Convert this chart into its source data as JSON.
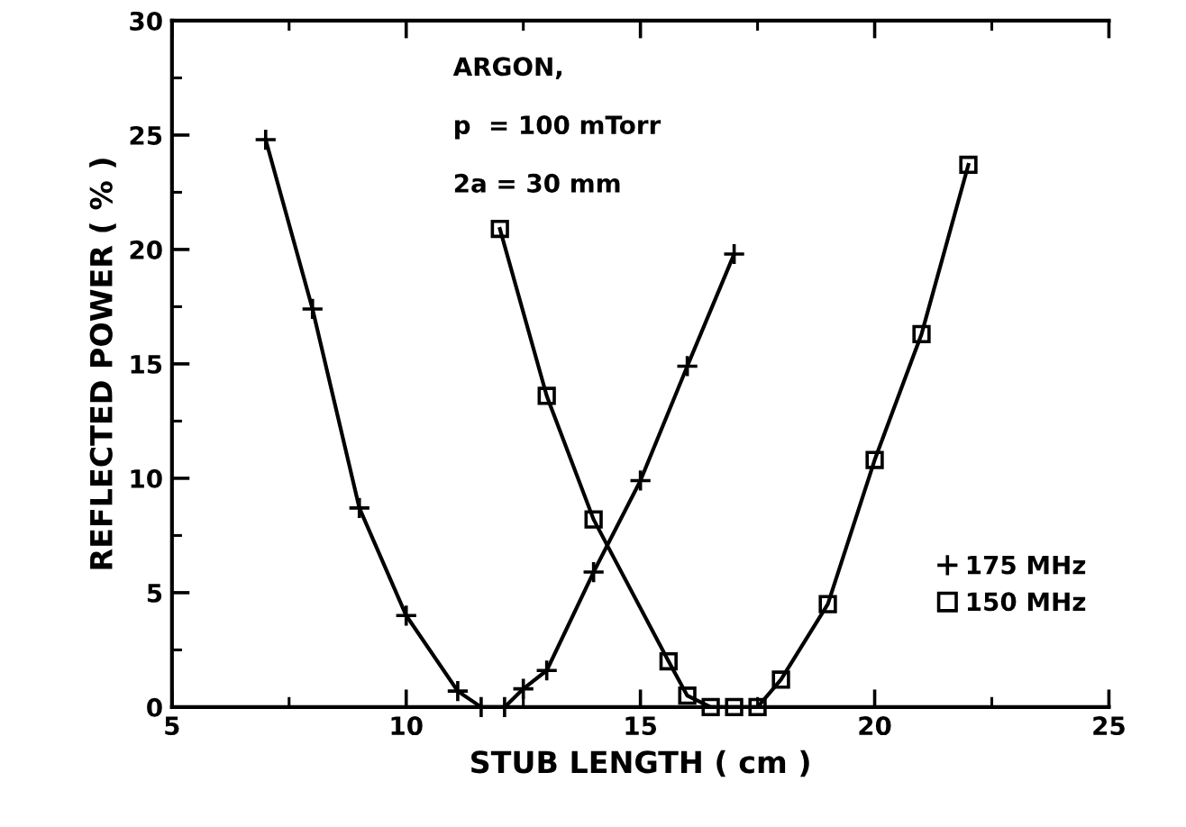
{
  "chart_data": {
    "type": "line",
    "xlabel": "STUB LENGTH ( cm )",
    "ylabel": "REFLECTED POWER ( % )",
    "annotations": [
      "ARGON,",
      "p  = 100 mTorr",
      "2a = 30 mm"
    ],
    "xlim": [
      5,
      25
    ],
    "xticks": [
      5,
      10,
      15,
      20,
      25
    ],
    "ylim": [
      0,
      30
    ],
    "yticks": [
      0,
      5,
      10,
      15,
      20,
      25,
      30
    ],
    "grid": false,
    "legend": "bottom right",
    "series": [
      {
        "name": "175 MHz",
        "color": "#000000",
        "marker": "cross",
        "x": [
          7,
          8,
          9,
          10,
          11.1,
          11.6,
          12.1,
          12.5,
          13,
          14,
          15,
          16,
          17
        ],
        "values": [
          24.8,
          17.4,
          8.7,
          4.0,
          0.7,
          0,
          0,
          0.8,
          1.6,
          5.9,
          9.9,
          14.9,
          19.8
        ]
      },
      {
        "name": "150 MHz",
        "color": "#000000",
        "marker": "square",
        "x": [
          12,
          13,
          14,
          15.6,
          16,
          16.5,
          17,
          17.5,
          18,
          19,
          20,
          21,
          22
        ],
        "values": [
          20.9,
          13.6,
          8.2,
          2.0,
          0.5,
          0,
          0,
          0,
          1.2,
          4.5,
          10.8,
          16.3,
          23.7
        ]
      }
    ]
  }
}
